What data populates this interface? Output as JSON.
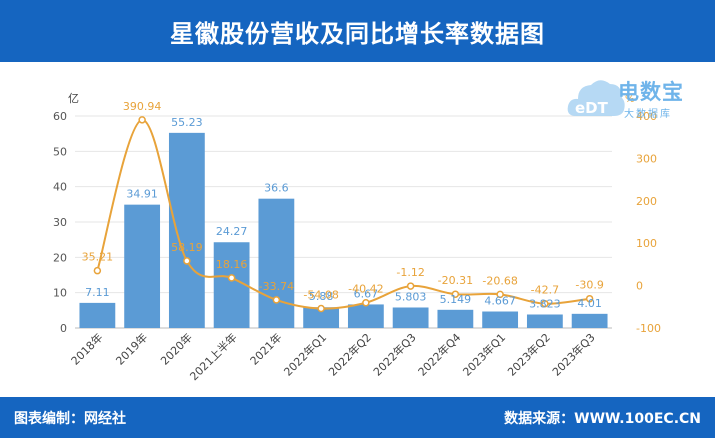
{
  "header": {
    "title": "星徽股份营收及同比增长率数据图"
  },
  "footer": {
    "left": "图表编制：网经社",
    "right": "数据来源：WWW.100EC.CN"
  },
  "logo": {
    "brand": "电数宝",
    "sub": "大数据库",
    "badge": "eDT"
  },
  "colors": {
    "bar": "#5b9bd5",
    "line": "#e8a33a",
    "header": "#1565c0",
    "barLabel": "#5b9bd5",
    "lineLabel": "#e8a33a"
  },
  "chart_data": {
    "type": "bar",
    "categories": [
      "2018年",
      "2019年",
      "2020年",
      "2021上半年",
      "2021年",
      "2022年Q1",
      "2022年Q2",
      "2022年Q3",
      "2022年Q4",
      "2023年Q1",
      "2023年Q2",
      "2023年Q3"
    ],
    "series": [
      {
        "type": "bar",
        "axis": "left",
        "values": [
          7.11,
          34.91,
          55.23,
          24.27,
          36.6,
          5.88,
          6.67,
          5.803,
          5.149,
          4.667,
          3.823,
          4.01
        ]
      },
      {
        "type": "line",
        "axis": "right",
        "values": [
          35.21,
          390.94,
          58.19,
          18.16,
          -33.74,
          -54.08,
          -40.42,
          -1.12,
          -20.31,
          -20.68,
          -42.7,
          -30.9
        ]
      }
    ],
    "ylabel": "亿",
    "y2label": "%",
    "ylim": [
      0,
      60
    ],
    "y2lim": [
      -100,
      400
    ],
    "yticks": [
      0,
      10,
      20,
      30,
      40,
      50,
      60
    ],
    "y2ticks": [
      -100,
      0,
      100,
      200,
      300,
      400
    ],
    "grid": true,
    "legend": "none"
  }
}
